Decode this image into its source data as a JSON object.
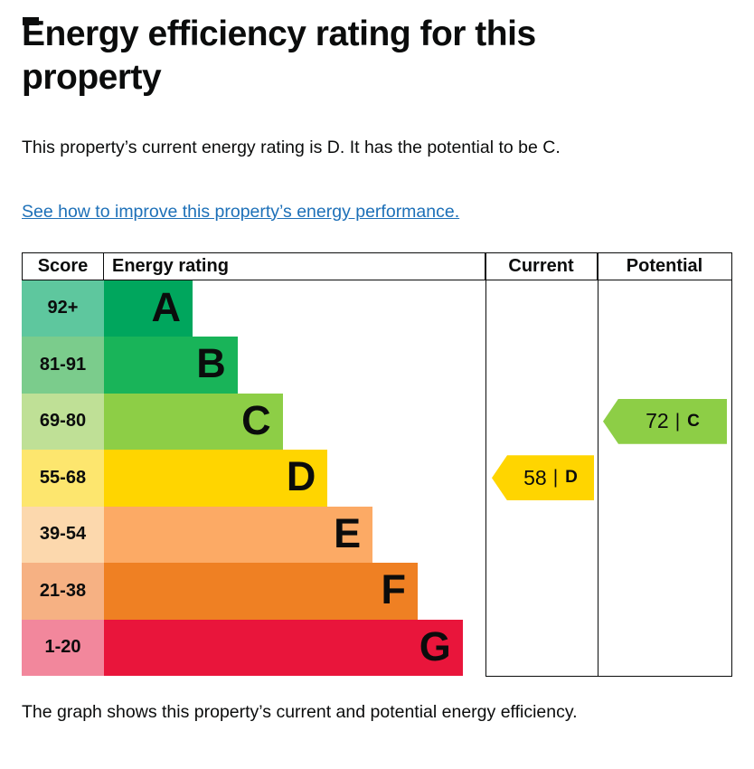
{
  "page": {
    "title": "Energy efficiency rating for this property",
    "intro": "This property’s current energy rating is D. It has the potential to be C.",
    "improve_link": "See how to improve this property’s energy performance.",
    "footer": "The graph shows this property’s current and potential energy efficiency."
  },
  "chart_data": {
    "type": "bar",
    "title": "Energy efficiency rating for this property",
    "headers": {
      "score": "Score",
      "rating": "Energy rating",
      "current": "Current",
      "potential": "Potential"
    },
    "bands": [
      {
        "score": "92+",
        "letter": "A",
        "band_color": "#00a65d",
        "score_color": "#5ec79e"
      },
      {
        "score": "81-91",
        "letter": "B",
        "band_color": "#19b459",
        "score_color": "#7bcc8c"
      },
      {
        "score": "69-80",
        "letter": "C",
        "band_color": "#8dce46",
        "score_color": "#bfe096"
      },
      {
        "score": "55-68",
        "letter": "D",
        "band_color": "#ffd500",
        "score_color": "#fde66e"
      },
      {
        "score": "39-54",
        "letter": "E",
        "band_color": "#fcaa65",
        "score_color": "#fcd8ad"
      },
      {
        "score": "21-38",
        "letter": "F",
        "band_color": "#ef8023",
        "score_color": "#f6b183"
      },
      {
        "score": "1-20",
        "letter": "G",
        "band_color": "#e9153b",
        "score_color": "#f2879c"
      }
    ],
    "current": {
      "value": "58",
      "separator": "|",
      "letter": "D",
      "color": "#ffd500"
    },
    "potential": {
      "value": "72",
      "separator": "|",
      "letter": "C",
      "color": "#8dce46"
    }
  }
}
